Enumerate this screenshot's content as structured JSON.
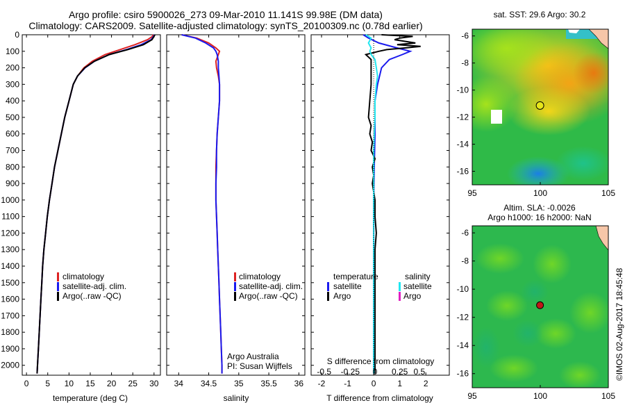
{
  "title": {
    "line1": "Argo profile: csiro 5900026_273 09-Mar-2010 11.141S 99.98E (DM data)",
    "line2": "Climatology: CARS2009. Satellite-adjusted climatology: synTS_20100309.nc (0.78d earlier)"
  },
  "colors": {
    "climatology": "#dd2222",
    "satellite": "#1a1aee",
    "argo": "#000000",
    "salinity_satellite": "#22e6f0",
    "salinity_argo": "#e020c0"
  },
  "chart_data": [
    {
      "type": "line",
      "name": "temperature",
      "xlabel": "temperature (deg C)",
      "ylabel": "",
      "xlim": [
        -1,
        31.5
      ],
      "ylim": [
        2060,
        0
      ],
      "xticks": [
        0,
        5,
        10,
        15,
        20,
        25,
        30
      ],
      "yticks": [
        0,
        100,
        200,
        300,
        400,
        500,
        600,
        700,
        800,
        900,
        1000,
        1100,
        1200,
        1300,
        1400,
        1500,
        1600,
        1700,
        1800,
        1900,
        2000
      ],
      "legend": [
        "climatology",
        "satellite-adj. clim.",
        "Argo(..raw -QC)"
      ],
      "series": [
        {
          "name": "climatology",
          "color_key": "climatology",
          "points": [
            [
              29.8,
              0
            ],
            [
              29.6,
              10
            ],
            [
              28.5,
              30
            ],
            [
              25.5,
              60
            ],
            [
              22,
              90
            ],
            [
              18.5,
              120
            ],
            [
              15.5,
              160
            ],
            [
              13.5,
              200
            ],
            [
              12,
              250
            ],
            [
              11,
              300
            ],
            [
              10,
              400
            ],
            [
              9,
              500
            ],
            [
              8.2,
              600
            ],
            [
              7.4,
              700
            ],
            [
              6.6,
              800
            ],
            [
              6,
              900
            ],
            [
              5.4,
              1000
            ],
            [
              4.9,
              1100
            ],
            [
              4.5,
              1200
            ],
            [
              4.1,
              1300
            ],
            [
              3.8,
              1400
            ],
            [
              3.6,
              1500
            ],
            [
              3.4,
              1600
            ],
            [
              3.2,
              1700
            ],
            [
              3,
              1800
            ],
            [
              2.8,
              1900
            ],
            [
              2.6,
              2000
            ],
            [
              2.5,
              2050
            ]
          ]
        },
        {
          "name": "satellite",
          "color_key": "satellite",
          "points": [
            [
              30.1,
              0
            ],
            [
              29.9,
              10
            ],
            [
              29.3,
              30
            ],
            [
              27,
              60
            ],
            [
              23.5,
              90
            ],
            [
              19.5,
              120
            ],
            [
              16,
              160
            ],
            [
              13.8,
              200
            ],
            [
              12,
              250
            ],
            [
              11,
              300
            ],
            [
              10,
              400
            ],
            [
              9,
              500
            ],
            [
              8.2,
              600
            ],
            [
              7.4,
              700
            ],
            [
              6.6,
              800
            ],
            [
              6,
              900
            ],
            [
              5.4,
              1000
            ],
            [
              4.9,
              1100
            ],
            [
              4.5,
              1200
            ],
            [
              4.1,
              1300
            ],
            [
              3.8,
              1400
            ],
            [
              3.6,
              1500
            ],
            [
              3.4,
              1600
            ],
            [
              3.2,
              1700
            ],
            [
              3,
              1800
            ],
            [
              2.8,
              1900
            ],
            [
              2.6,
              2000
            ],
            [
              2.5,
              2050
            ]
          ]
        },
        {
          "name": "argo",
          "color_key": "argo",
          "points": [
            [
              30.2,
              0
            ],
            [
              30,
              10
            ],
            [
              29.5,
              30
            ],
            [
              27.5,
              60
            ],
            [
              23.8,
              90
            ],
            [
              19.5,
              120
            ],
            [
              16,
              160
            ],
            [
              13.7,
              200
            ],
            [
              12,
              250
            ],
            [
              11,
              300
            ],
            [
              10,
              400
            ],
            [
              9,
              500
            ],
            [
              8.2,
              600
            ],
            [
              7.4,
              700
            ],
            [
              6.6,
              800
            ],
            [
              6,
              900
            ],
            [
              5.4,
              1000
            ],
            [
              4.9,
              1100
            ],
            [
              4.5,
              1200
            ],
            [
              4.1,
              1300
            ],
            [
              3.8,
              1400
            ],
            [
              3.6,
              1500
            ],
            [
              3.4,
              1600
            ],
            [
              3.2,
              1700
            ],
            [
              3,
              1800
            ],
            [
              2.8,
              1900
            ],
            [
              2.6,
              2000
            ],
            [
              2.5,
              2050
            ]
          ]
        }
      ]
    },
    {
      "type": "line",
      "name": "salinity",
      "xlabel": "salinity",
      "xlim": [
        33.8,
        36.1
      ],
      "ylim": [
        2060,
        0
      ],
      "xticks": [
        34,
        34.5,
        35,
        35.5,
        36
      ],
      "legend": [
        "climatology",
        "satellite-adj. clim.",
        "Argo(..raw -QC)"
      ],
      "annotation": [
        "Argo Australia",
        "PI: Susan Wijffels"
      ],
      "series": [
        {
          "name": "climatology",
          "color_key": "climatology",
          "points": [
            [
              34.05,
              0
            ],
            [
              34.3,
              20
            ],
            [
              34.5,
              50
            ],
            [
              34.62,
              80
            ],
            [
              34.68,
              100
            ],
            [
              34.66,
              120
            ],
            [
              34.62,
              160
            ],
            [
              34.63,
              200
            ],
            [
              34.66,
              250
            ],
            [
              34.68,
              300
            ],
            [
              34.68,
              400
            ],
            [
              34.66,
              500
            ],
            [
              34.64,
              600
            ],
            [
              34.63,
              700
            ],
            [
              34.62,
              800
            ],
            [
              34.62,
              900
            ],
            [
              34.62,
              1000
            ],
            [
              34.63,
              1100
            ],
            [
              34.64,
              1200
            ],
            [
              34.65,
              1300
            ],
            [
              34.66,
              1400
            ],
            [
              34.67,
              1500
            ],
            [
              34.68,
              1600
            ],
            [
              34.69,
              1700
            ],
            [
              34.7,
              1800
            ],
            [
              34.71,
              1900
            ],
            [
              34.72,
              2000
            ],
            [
              34.72,
              2050
            ]
          ]
        },
        {
          "name": "satellite",
          "color_key": "satellite",
          "points": [
            [
              34.05,
              0
            ],
            [
              34.28,
              20
            ],
            [
              34.45,
              50
            ],
            [
              34.58,
              80
            ],
            [
              34.62,
              100
            ],
            [
              34.64,
              120
            ],
            [
              34.66,
              160
            ],
            [
              34.66,
              200
            ],
            [
              34.67,
              250
            ],
            [
              34.68,
              300
            ],
            [
              34.68,
              400
            ],
            [
              34.66,
              500
            ],
            [
              34.64,
              600
            ],
            [
              34.63,
              700
            ],
            [
              34.63,
              800
            ],
            [
              34.62,
              900
            ],
            [
              34.62,
              1000
            ],
            [
              34.63,
              1100
            ],
            [
              34.64,
              1200
            ],
            [
              34.65,
              1300
            ],
            [
              34.66,
              1400
            ],
            [
              34.67,
              1500
            ],
            [
              34.68,
              1600
            ],
            [
              34.69,
              1700
            ],
            [
              34.7,
              1800
            ],
            [
              34.71,
              1900
            ],
            [
              34.72,
              2000
            ],
            [
              34.72,
              2050
            ]
          ]
        }
      ]
    },
    {
      "type": "line",
      "name": "difference",
      "xlabel": "T difference from climatology",
      "top_label": "S difference from climatology",
      "xlim": [
        -2.4,
        2.9
      ],
      "ylim": [
        2060,
        0
      ],
      "xticks": [
        -2,
        -1,
        0,
        1,
        2
      ],
      "s_ticks": [
        {
          "label": "-0.5",
          "x_units": -1.9
        },
        {
          "label": "-0.25",
          "x_units": -0.9
        },
        {
          "label": "0",
          "x_units": 0.05
        },
        {
          "label": "0.25",
          "x_units": 1.0
        },
        {
          "label": "0.5",
          "x_units": 1.75
        }
      ],
      "legend_left_title": "temperature",
      "legend_right_title": "salinity",
      "legend_left": [
        "satellite",
        "Argo"
      ],
      "legend_right": [
        "satellite",
        "Argo"
      ],
      "series": [
        {
          "name": "T satellite",
          "color_key": "satellite",
          "points": [
            [
              -0.4,
              0
            ],
            [
              -0.2,
              20
            ],
            [
              0.2,
              50
            ],
            [
              0.9,
              80
            ],
            [
              1.4,
              100
            ],
            [
              1.1,
              120
            ],
            [
              0.6,
              150
            ],
            [
              0.3,
              200
            ],
            [
              0.15,
              300
            ],
            [
              0.05,
              400
            ],
            [
              0.05,
              600
            ],
            [
              0.02,
              800
            ],
            [
              0,
              1000
            ],
            [
              0,
              1200
            ],
            [
              0,
              1400
            ],
            [
              0,
              1600
            ],
            [
              0,
              1800
            ],
            [
              0,
              2000
            ],
            [
              0,
              2050
            ]
          ]
        },
        {
          "name": "T argo",
          "color_key": "argo",
          "points": [
            [
              0.3,
              0
            ],
            [
              1.5,
              10
            ],
            [
              1.0,
              20
            ],
            [
              0.8,
              30
            ],
            [
              1.6,
              50
            ],
            [
              0.9,
              60
            ],
            [
              1.8,
              70
            ],
            [
              1.2,
              80
            ],
            [
              0.5,
              90
            ],
            [
              0.2,
              100
            ],
            [
              -0.3,
              120
            ],
            [
              -0.1,
              150
            ],
            [
              -0.1,
              200
            ],
            [
              -0.1,
              300
            ],
            [
              -0.15,
              400
            ],
            [
              -0.2,
              500
            ],
            [
              -0.1,
              550
            ],
            [
              -0.15,
              600
            ],
            [
              -0.05,
              650
            ],
            [
              -0.1,
              700
            ],
            [
              0.05,
              750
            ],
            [
              -0.05,
              800
            ],
            [
              0,
              850
            ],
            [
              -0.05,
              900
            ],
            [
              0.05,
              1000
            ],
            [
              0.05,
              1100
            ],
            [
              0.1,
              1200
            ],
            [
              0.05,
              1300
            ],
            [
              0.05,
              1400
            ],
            [
              0.05,
              1500
            ],
            [
              0.05,
              1600
            ],
            [
              0.05,
              1700
            ],
            [
              0.05,
              1800
            ],
            [
              0.05,
              1900
            ],
            [
              0.05,
              2000
            ],
            [
              0.05,
              2050
            ]
          ]
        },
        {
          "name": "S satellite",
          "color_key": "salinity_satellite",
          "points": [
            [
              -0.3,
              0
            ],
            [
              -0.1,
              20
            ],
            [
              -0.2,
              50
            ],
            [
              -0.1,
              80
            ],
            [
              -0.15,
              100
            ],
            [
              -0.1,
              120
            ],
            [
              0.05,
              150
            ],
            [
              0.1,
              200
            ],
            [
              0.15,
              250
            ],
            [
              0.1,
              300
            ],
            [
              0.05,
              400
            ],
            [
              0.05,
              500
            ],
            [
              0,
              700
            ],
            [
              0,
              1000
            ],
            [
              0,
              1500
            ],
            [
              0,
              2050
            ]
          ]
        }
      ]
    },
    {
      "type": "heatmap",
      "name": "sst-map",
      "title": "sat. SST: 29.6  Argo: 30.2",
      "xlim": [
        95,
        105
      ],
      "ylim": [
        -17,
        -5.5
      ],
      "xticks": [
        95,
        100,
        105
      ],
      "yticks": [
        -6,
        -8,
        -10,
        -12,
        -14,
        -16
      ],
      "argo_position": [
        99.98,
        -11.141
      ]
    },
    {
      "type": "heatmap",
      "name": "sla-map",
      "title_line1": "Altim. SLA: -0.0026",
      "title_line2": "Argo h1000: 16 h2000: NaN",
      "xlim": [
        95,
        105
      ],
      "ylim": [
        -17,
        -5.5
      ],
      "xticks": [
        95,
        100,
        105
      ],
      "yticks": [
        -6,
        -8,
        -10,
        -12,
        -14,
        -16
      ],
      "argo_position": [
        99.98,
        -11.141
      ]
    }
  ],
  "footer": {
    "credit": "©IMOS 02-Aug-2017 18:45:48"
  }
}
